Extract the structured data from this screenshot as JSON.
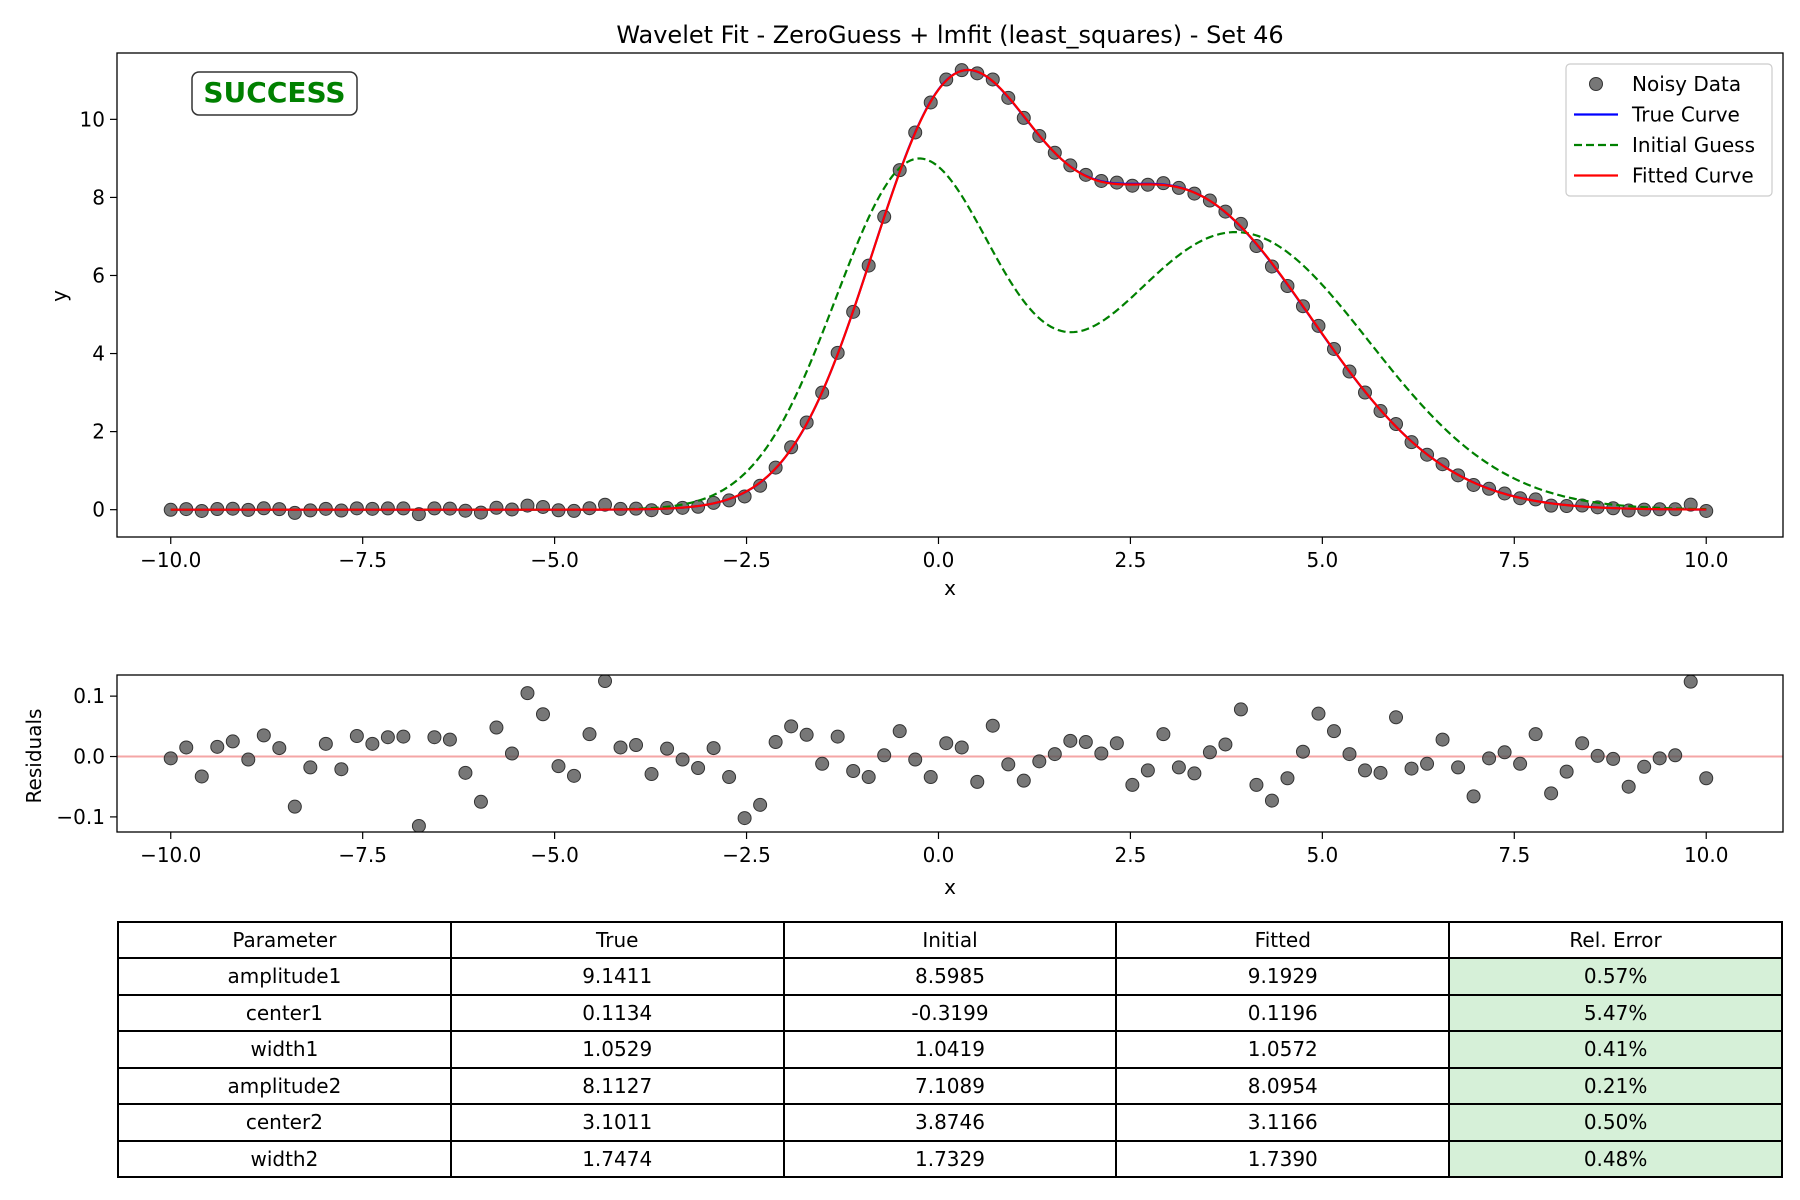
{
  "chart_data": [
    {
      "type": "line",
      "title": "Wavelet Fit - ZeroGuess + lmfit (least_squares) - Set 46",
      "xlabel": "x",
      "ylabel": "y",
      "xlim": [
        -10.7,
        11.0
      ],
      "ylim": [
        -0.7,
        11.7
      ],
      "xticks": [
        -10.0,
        -7.5,
        -5.0,
        -2.5,
        0.0,
        2.5,
        5.0,
        7.5,
        10.0
      ],
      "yticks": [
        0,
        2,
        4,
        6,
        8,
        10
      ],
      "status_badge": "SUCCESS",
      "legend_position": "top-right",
      "legend": [
        "Noisy Data",
        "True Curve",
        "Initial Guess",
        "Fitted Curve"
      ],
      "series": [
        {
          "name": "Noisy Data",
          "kind": "scatter",
          "color": "#555555",
          "x_range": [
            -10,
            10
          ],
          "n_points": 100,
          "residuals": [
            -0.003,
            0.015,
            -0.033,
            0.016,
            0.025,
            -0.005,
            0.035,
            0.014,
            -0.083,
            -0.018,
            0.021,
            -0.021,
            0.034,
            0.021,
            0.032,
            0.033,
            -0.115,
            0.032,
            0.028,
            -0.027,
            -0.075,
            0.048,
            0.005,
            0.105,
            0.07,
            -0.016,
            -0.032,
            0.037,
            0.125,
            0.015,
            0.019,
            -0.029,
            0.013,
            -0.005,
            -0.019,
            0.014,
            -0.034,
            -0.102,
            -0.08,
            0.024,
            0.05,
            0.036,
            -0.012,
            0.033,
            -0.024,
            -0.034,
            0.002,
            0.042,
            -0.005,
            -0.034,
            0.022,
            0.015,
            -0.042,
            0.051,
            -0.013,
            -0.04,
            -0.008,
            0.004,
            0.026,
            0.024,
            0.005,
            0.022,
            -0.047,
            -0.023,
            0.037,
            -0.018,
            -0.028,
            0.007,
            0.02,
            0.078,
            -0.047,
            -0.073,
            -0.036,
            0.008,
            0.071,
            0.042,
            0.004,
            -0.023,
            -0.027,
            0.065,
            -0.02,
            -0.012,
            0.028,
            -0.018,
            -0.066,
            -0.003,
            0.007,
            -0.012,
            0.037,
            -0.061,
            -0.025,
            0.022,
            0.001,
            -0.004,
            -0.05,
            -0.017,
            -0.003,
            0.002,
            0.124,
            -0.036
          ]
        },
        {
          "name": "True Curve",
          "kind": "line",
          "color": "#0000ff",
          "style": "solid",
          "params": {
            "amplitude1": 9.1411,
            "center1": 0.1134,
            "width1": 1.0529,
            "amplitude2": 8.1127,
            "center2": 3.1011,
            "width2": 1.7474
          }
        },
        {
          "name": "Initial Guess",
          "kind": "line",
          "color": "#008000",
          "style": "dashed",
          "params": {
            "amplitude1": 8.5985,
            "center1": -0.3199,
            "width1": 1.0419,
            "amplitude2": 7.1089,
            "center2": 3.8746,
            "width2": 1.7329
          }
        },
        {
          "name": "Fitted Curve",
          "kind": "line",
          "color": "#ff0000",
          "style": "solid",
          "params": {
            "amplitude1": 9.1929,
            "center1": 0.1196,
            "width1": 1.0572,
            "amplitude2": 8.0954,
            "center2": 3.1166,
            "width2": 1.739
          }
        }
      ]
    },
    {
      "type": "scatter",
      "xlabel": "x",
      "ylabel": "Residuals",
      "xlim": [
        -10.7,
        11.0
      ],
      "ylim": [
        -0.125,
        0.135
      ],
      "xticks": [
        -10.0,
        -7.5,
        -5.0,
        -2.5,
        0.0,
        2.5,
        5.0,
        7.5,
        10.0
      ],
      "yticks": [
        -0.1,
        0.0,
        0.1
      ],
      "zero_line_color": "#f4a6a6"
    },
    {
      "type": "table",
      "columns": [
        "Parameter",
        "True",
        "Initial",
        "Fitted",
        "Rel. Error"
      ],
      "rows": [
        [
          "amplitude1",
          "9.1411",
          "8.5985",
          "9.1929",
          "0.57%"
        ],
        [
          "center1",
          "0.1134",
          "-0.3199",
          "0.1196",
          "5.47%"
        ],
        [
          "width1",
          "1.0529",
          "1.0419",
          "1.0572",
          "0.41%"
        ],
        [
          "amplitude2",
          "8.1127",
          "7.1089",
          "8.0954",
          "0.21%"
        ],
        [
          "center2",
          "3.1011",
          "3.8746",
          "3.1166",
          "0.50%"
        ],
        [
          "width2",
          "1.7474",
          "1.7329",
          "1.7390",
          "0.48%"
        ]
      ]
    }
  ]
}
